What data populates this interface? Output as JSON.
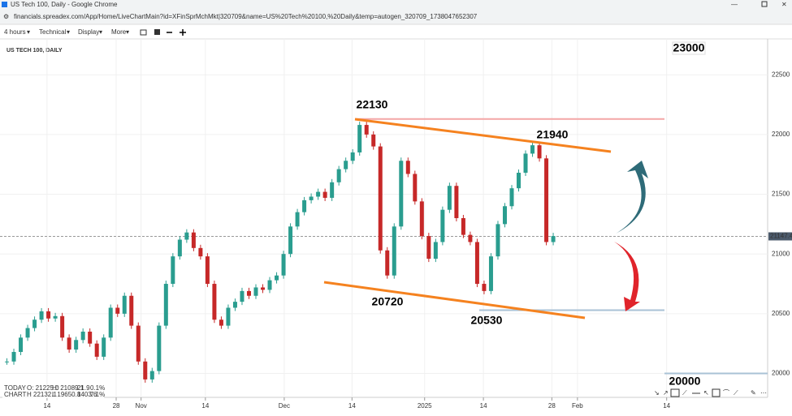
{
  "window": {
    "title": "US Tech 100, Daily - Google Chrome",
    "url": "financials.spreadex.com/App/Home/LiveChartMain?id=XFinSprMchMkt|320709&name=US%20Tech%20100,%20Daily&temp=autogen_320709_1738047652307"
  },
  "toolbar": {
    "items": [
      "4 hours",
      "Technical",
      "Display",
      "More"
    ]
  },
  "chart_data": {
    "type": "candlestick",
    "title": "US TECH 100, DAILY",
    "up_color": "#2a9d8f",
    "down_color": "#c62828",
    "values": [
      20100,
      20180,
      20300,
      20380,
      20450,
      20520,
      20460,
      20480,
      20300,
      20200,
      20280,
      20350,
      20250,
      20140,
      20300,
      20550,
      20500,
      20650,
      20400,
      20100,
      19950,
      20020,
      20400,
      20750,
      20980,
      21120,
      21180,
      21050,
      20980,
      20750,
      20450,
      20400,
      20550,
      20600,
      20690,
      20650,
      20720,
      20700,
      20780,
      20820,
      21000,
      21230,
      21350,
      21450,
      21480,
      21520,
      21470,
      21600,
      21710,
      21780,
      21850,
      22080,
      22000,
      21900,
      21030,
      20820,
      21230,
      21780,
      21670,
      21440,
      21150,
      20960,
      21100,
      21370,
      21570,
      21300,
      21160,
      21100,
      20750,
      20690,
      20980,
      21250,
      21400,
      21550,
      21680,
      21840,
      21910,
      21800,
      21100,
      21150
    ],
    "xlim": [
      -1,
      110
    ],
    "ylim": [
      19800,
      22800
    ],
    "xticks": [
      {
        "value": 5.8,
        "label": "14"
      },
      {
        "value": 15.8,
        "label": "28"
      },
      {
        "value": 19.4,
        "label": "Nov"
      },
      {
        "value": 28.7,
        "label": "14"
      },
      {
        "value": 40.1,
        "label": "Dec"
      },
      {
        "value": 49.9,
        "label": "14"
      },
      {
        "value": 60.4,
        "label": "2025"
      },
      {
        "value": 68.9,
        "label": "14"
      },
      {
        "value": 78.8,
        "label": "28"
      },
      {
        "value": 82.5,
        "label": "Feb"
      },
      {
        "value": 95.4,
        "label": "14"
      }
    ],
    "yticks": [
      20000,
      20500,
      21000,
      21500,
      22000,
      22500
    ],
    "grid": true,
    "current_price": 21147.4,
    "level_labels": [
      22130,
      21940,
      20720,
      20530,
      23000,
      20000
    ],
    "info": [
      "TODAY",
      "O: 21225.0",
      "H: 21089.1",
      "21.9",
      "0.1%",
      "CHART",
      "H 22132.1",
      "L 19650.8",
      "1403.6",
      "7.1%"
    ]
  }
}
